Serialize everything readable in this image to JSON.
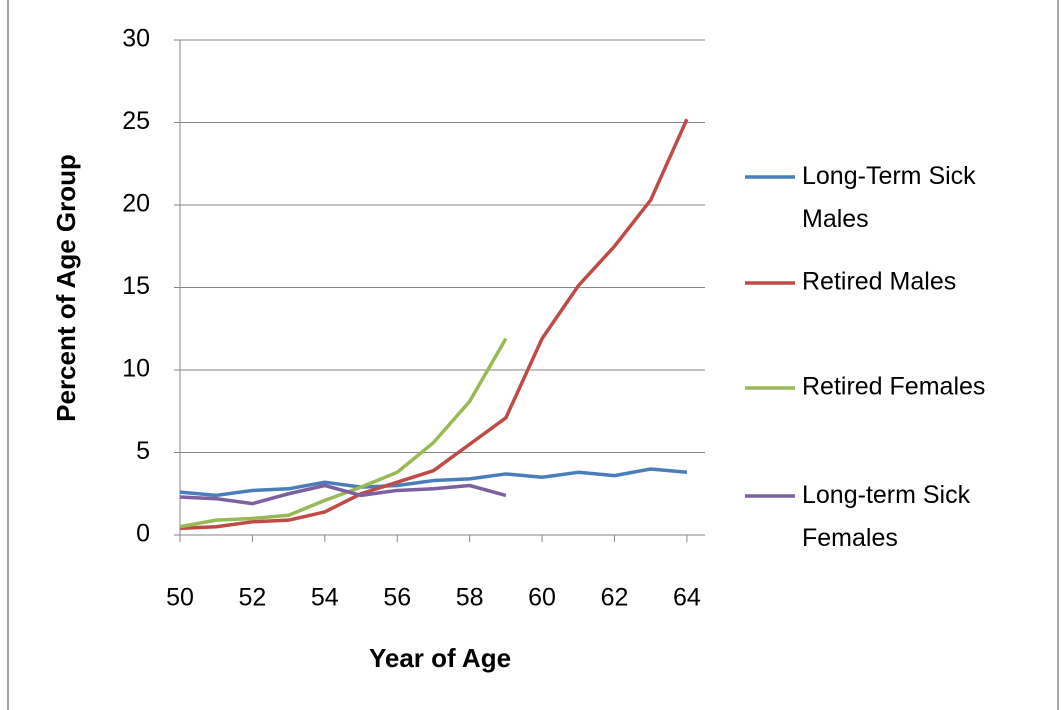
{
  "chart_data": {
    "type": "line",
    "xlabel": "Year of Age",
    "ylabel": "Percent of Age Group",
    "x": [
      50,
      51,
      52,
      53,
      54,
      55,
      56,
      57,
      58,
      59,
      60,
      61,
      62,
      63,
      64
    ],
    "series": [
      {
        "name": "Long-Term Sick Males",
        "color": "#4a7ebb",
        "values": [
          2.6,
          2.4,
          2.7,
          2.8,
          3.2,
          2.9,
          3.0,
          3.3,
          3.4,
          3.7,
          3.5,
          3.8,
          3.6,
          4.0,
          3.8
        ]
      },
      {
        "name": "Retired Males",
        "color": "#be4b48",
        "values": [
          0.4,
          0.5,
          0.8,
          0.9,
          1.4,
          2.5,
          3.2,
          3.9,
          5.5,
          7.1,
          11.9,
          15.1,
          17.5,
          20.3,
          25.2
        ]
      },
      {
        "name": "Retired Females",
        "color": "#98b954",
        "values": [
          0.5,
          0.9,
          1.0,
          1.2,
          2.1,
          2.9,
          3.8,
          5.6,
          8.1,
          11.9,
          null,
          null,
          null,
          null,
          null
        ]
      },
      {
        "name": "Long-term Sick Females",
        "color": "#7d60a0",
        "values": [
          2.3,
          2.2,
          1.9,
          2.5,
          3.0,
          2.4,
          2.7,
          2.8,
          3.0,
          2.4,
          null,
          null,
          null,
          null,
          null
        ]
      }
    ],
    "xlim": [
      50,
      64.5
    ],
    "xticks": [
      50,
      52,
      54,
      56,
      58,
      60,
      62,
      64
    ],
    "ylim": [
      0,
      30
    ],
    "yticks": [
      0,
      5,
      10,
      15,
      20,
      25,
      30
    ],
    "grid": true,
    "legend": "right"
  }
}
